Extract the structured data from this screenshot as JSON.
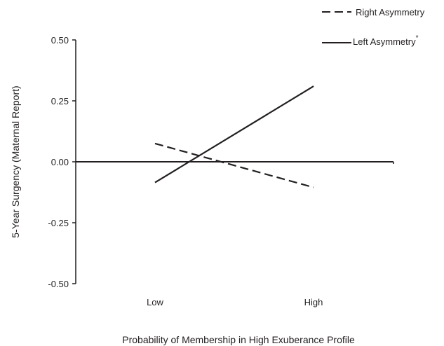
{
  "chart_data": {
    "type": "line",
    "categories": [
      "Low",
      "High"
    ],
    "series": [
      {
        "name": "Right Asymmetry",
        "style": "dashed",
        "values": [
          0.075,
          -0.105
        ]
      },
      {
        "name": "Left Asymmetry",
        "style": "solid",
        "values": [
          -0.085,
          0.31
        ],
        "marker": "*"
      }
    ],
    "ylabel": "5-Year Surgency (Maternal Report)",
    "xlabel": "Probability of Membership in High Exuberance Profile",
    "yticks": [
      "0.50",
      "0.25",
      "0.00",
      "-0.25",
      "-0.50"
    ],
    "ytick_values": [
      0.5,
      0.25,
      0.0,
      -0.25,
      -0.5
    ],
    "ylim": [
      -0.5,
      0.5
    ],
    "grid": false,
    "legend_position": "top-right",
    "line_color": "#231f20"
  }
}
